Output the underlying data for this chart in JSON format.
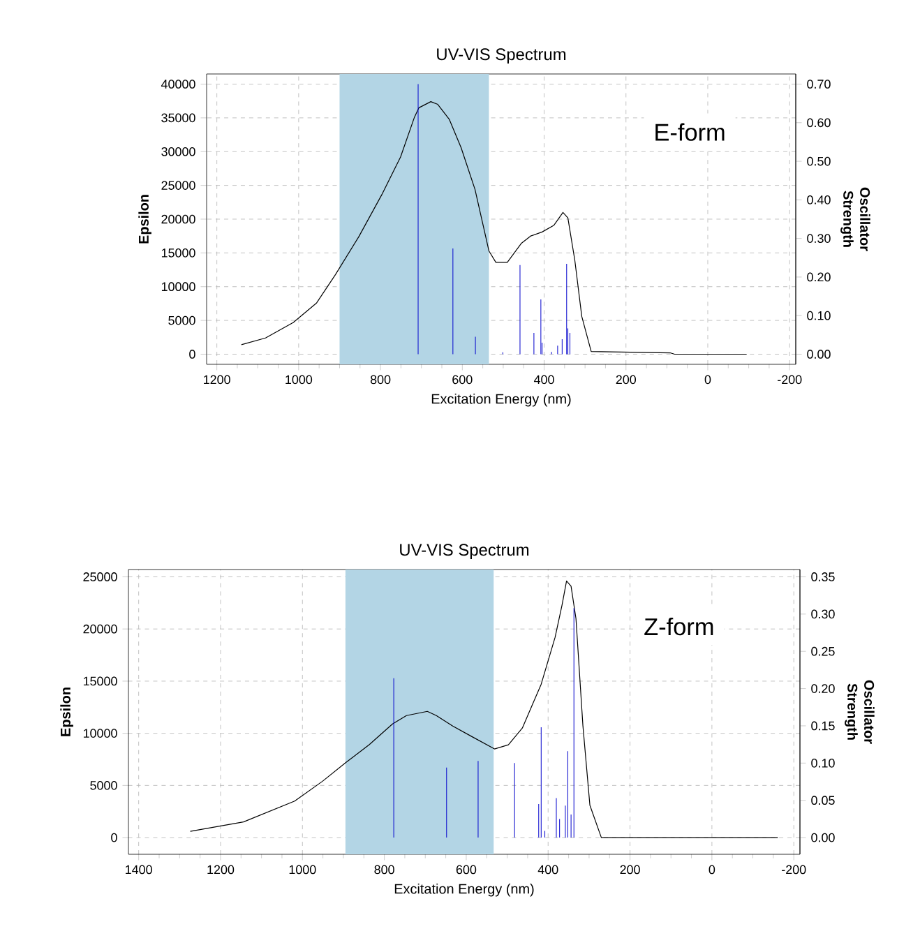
{
  "chart_data": [
    {
      "type": "line",
      "title": "UV-VIS Spectrum",
      "xlabel": "Excitation Energy (nm)",
      "ylabel": "Epsilon",
      "y2label": "Oscillator Strength",
      "xlim": [
        1225,
        -215
      ],
      "xticks": [
        1200,
        1000,
        800,
        600,
        400,
        200,
        0,
        -200
      ],
      "ylim": [
        -1500,
        41500
      ],
      "yticks": [
        0,
        5000,
        10000,
        15000,
        20000,
        25000,
        30000,
        35000,
        40000
      ],
      "y2lim": [
        -0.02625,
        0.72625
      ],
      "y2ticks": [
        {
          "value": 0,
          "label": "0.00"
        },
        {
          "value": 0.1,
          "label": "0.10"
        },
        {
          "value": 0.2,
          "label": "0.20"
        },
        {
          "value": 0.3,
          "label": "0.30"
        },
        {
          "value": 0.4,
          "label": "0.40"
        },
        {
          "value": 0.5,
          "label": "0.50"
        },
        {
          "value": 0.6,
          "label": "0.60"
        },
        {
          "value": 0.7,
          "label": "0.70"
        }
      ],
      "grid": true,
      "bands": [
        {
          "axis": "x",
          "from": 900,
          "to": 535,
          "color": "#b3d5e5"
        }
      ],
      "annotations": [
        "E-form"
      ],
      "series": [
        {
          "color": "#000000",
          "x": [
            1140,
            1081,
            1013,
            956,
            910,
            853,
            797,
            751,
            717,
            706,
            677,
            660,
            632,
            603,
            569,
            535,
            518,
            490,
            456,
            433,
            405,
            376,
            354,
            342,
            325,
            308,
            285,
            92,
            81,
            -95
          ],
          "values": [
            1400,
            2400,
            4700,
            7600,
            11800,
            17400,
            23600,
            29200,
            35100,
            36500,
            37400,
            37000,
            34800,
            30600,
            24400,
            15300,
            13600,
            13600,
            16400,
            17500,
            18100,
            19100,
            21000,
            20200,
            13900,
            5600,
            400,
            200,
            0,
            0
          ]
        },
        {
          "type": "bar",
          "axis": "y2",
          "color": "#0000cc",
          "x": [
            708,
            623,
            568,
            501,
            459,
            425,
            408,
            405,
            382,
            367,
            356,
            345,
            342,
            337
          ],
          "values": [
            0.7,
            0.274,
            0.045,
            0.005,
            0.231,
            0.055,
            0.142,
            0.03,
            0.006,
            0.022,
            0.039,
            0.234,
            0.067,
            0.055
          ]
        }
      ]
    },
    {
      "type": "line",
      "title": "UV-VIS Spectrum",
      "xlabel": "Excitation Energy (nm)",
      "ylabel": "Epsilon",
      "y2label": "Oscillator Strength",
      "xlim": [
        1425,
        -215
      ],
      "xticks": [
        1400,
        1200,
        1000,
        800,
        600,
        400,
        200,
        0,
        -200
      ],
      "ylim": [
        -1600,
        25700
      ],
      "yticks": [
        0,
        5000,
        10000,
        15000,
        20000,
        25000
      ],
      "y2lim": [
        -0.0224,
        0.3598
      ],
      "y2ticks": [
        {
          "value": 0,
          "label": "0.00"
        },
        {
          "value": 0.05,
          "label": "0.05"
        },
        {
          "value": 0.1,
          "label": "0.10"
        },
        {
          "value": 0.15,
          "label": "0.15"
        },
        {
          "value": 0.2,
          "label": "0.20"
        },
        {
          "value": 0.25,
          "label": "0.25"
        },
        {
          "value": 0.3,
          "label": "0.30"
        },
        {
          "value": 0.35,
          "label": "0.35"
        }
      ],
      "grid": true,
      "bands": [
        {
          "axis": "x",
          "from": 895,
          "to": 533,
          "color": "#b3d5e5"
        }
      ],
      "annotations": [
        "Z-form"
      ],
      "series": [
        {
          "color": "#000000",
          "x": [
            1274,
            1144,
            1019,
            951,
            894,
            837,
            780,
            746,
            695,
            673,
            633,
            587,
            531,
            497,
            463,
            417,
            383,
            366,
            355,
            344,
            332,
            315,
            298,
            270,
            -161
          ],
          "values": [
            600,
            1500,
            3500,
            5400,
            7200,
            8900,
            10900,
            11700,
            12100,
            11700,
            10700,
            9700,
            8500,
            8900,
            10500,
            14700,
            19200,
            22300,
            24600,
            24100,
            21000,
            10700,
            3100,
            0,
            0
          ]
        },
        {
          "type": "bar",
          "axis": "y2",
          "color": "#0000cc",
          "x": [
            777,
            648,
            571,
            508,
            482,
            423,
            417,
            408,
            380,
            372,
            358,
            352,
            344,
            337
          ],
          "values": [
            0.214,
            0.094,
            0.103,
            null,
            0.1,
            0.045,
            0.148,
            0.009,
            0.053,
            0.025,
            0.043,
            0.116,
            0.031,
            0.308
          ]
        }
      ]
    }
  ]
}
